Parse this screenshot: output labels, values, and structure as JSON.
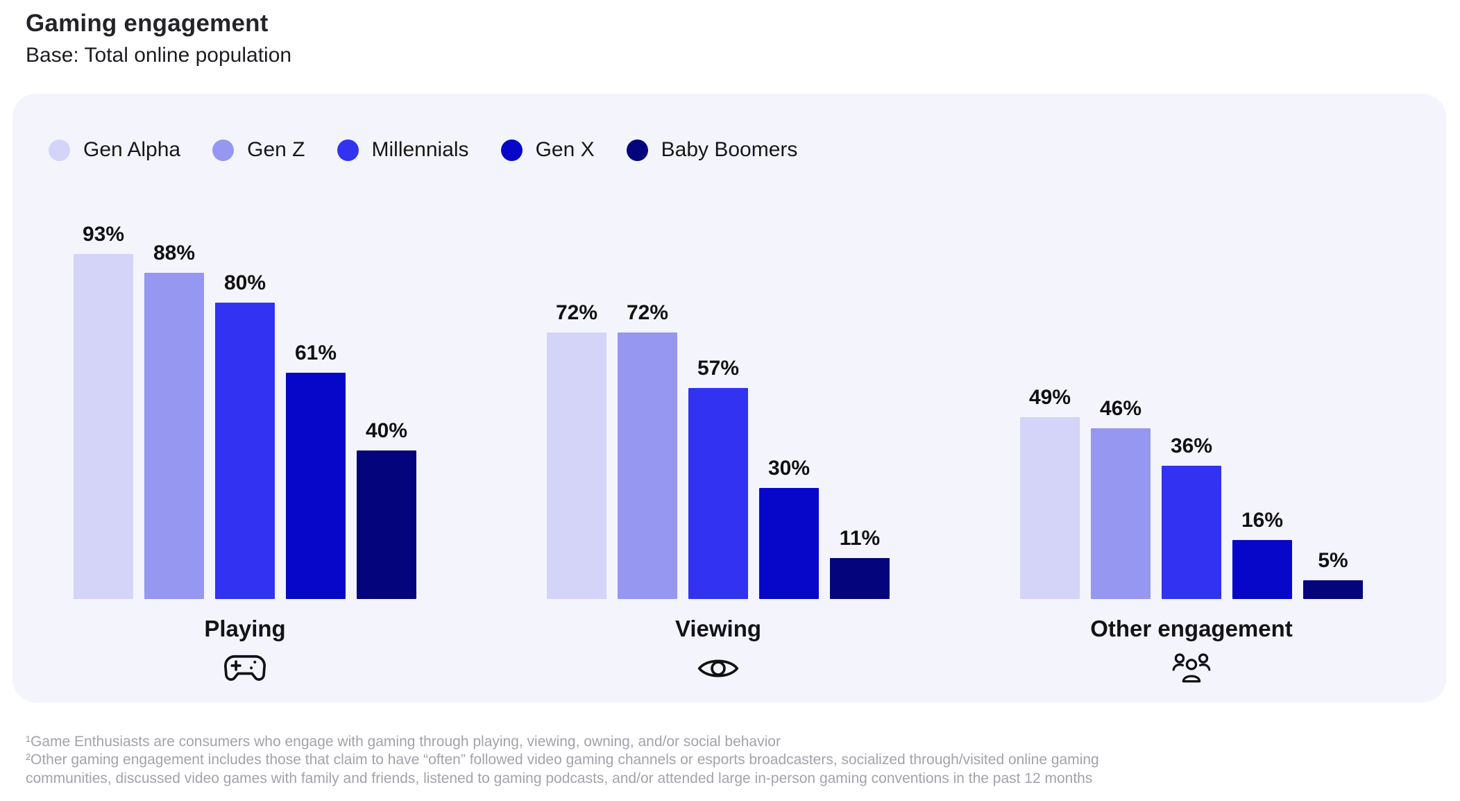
{
  "header": {
    "title": "Gaming engagement",
    "subtitle": "Base: Total online population"
  },
  "chart_data": {
    "type": "bar",
    "title": "Gaming engagement",
    "subtitle": "Base: Total online population",
    "categories": [
      "Playing",
      "Viewing",
      "Other engagement"
    ],
    "series": [
      {
        "name": "Gen Alpha",
        "color": "#d3d4f8",
        "values": [
          93,
          72,
          49
        ]
      },
      {
        "name": "Gen Z",
        "color": "#9597f0",
        "values": [
          88,
          72,
          46
        ]
      },
      {
        "name": "Millennials",
        "color": "#3232f2",
        "values": [
          80,
          57,
          36
        ]
      },
      {
        "name": "Gen X",
        "color": "#0707c9",
        "values": [
          61,
          30,
          16
        ]
      },
      {
        "name": "Baby Boomers",
        "color": "#04047c",
        "values": [
          40,
          11,
          5
        ]
      }
    ],
    "groups": [
      {
        "label": "Playing",
        "icon": "gamepad-icon",
        "values": [
          93,
          88,
          80,
          61,
          40
        ]
      },
      {
        "label": "Viewing",
        "icon": "eye-icon",
        "values": [
          72,
          72,
          57,
          30,
          11
        ]
      },
      {
        "label": "Other engagement",
        "icon": "people-icon",
        "values": [
          49,
          46,
          36,
          16,
          5
        ]
      }
    ],
    "value_suffix": "%",
    "ylim": [
      0,
      100
    ],
    "grid": false,
    "legend_position": "top-left",
    "card_background": "#f4f4fd"
  },
  "footnotes": [
    "¹Game Enthusiasts are consumers who engage with gaming through playing, viewing, owning, and/or social behavior",
    "²Other gaming engagement includes those that claim to have “often” followed video gaming channels or esports broadcasters, socialized through/visited online gaming communities, discussed video games with family and friends, listened to gaming podcasts, and/or attended large in-person gaming conventions in the past 12 months"
  ]
}
